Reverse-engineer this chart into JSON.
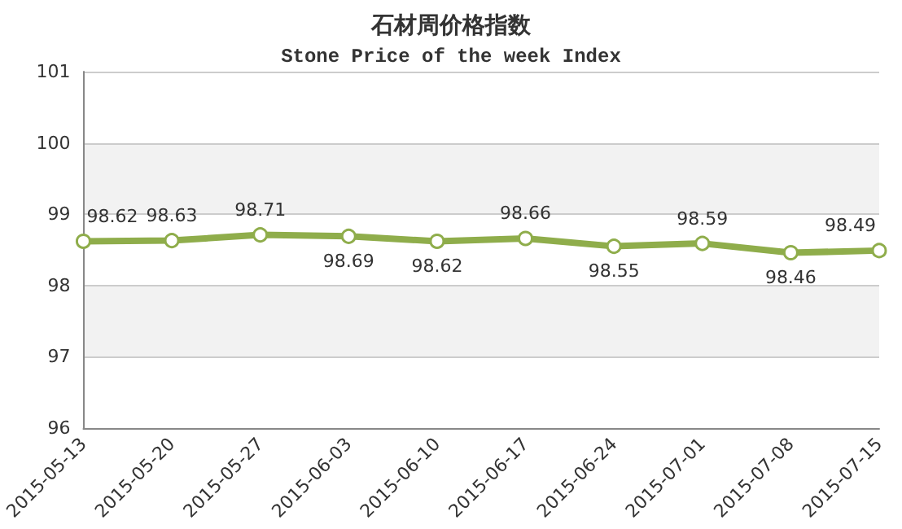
{
  "chart_data": {
    "type": "line",
    "title": "石材周价格指数",
    "subtitle": "Stone Price of the week Index",
    "categories": [
      "2015-05-13",
      "2015-05-20",
      "2015-05-27",
      "2015-06-03",
      "2015-06-10",
      "2015-06-17",
      "2015-06-24",
      "2015-07-01",
      "2015-07-08",
      "2015-07-15"
    ],
    "series": [
      {
        "color": "#8fad4b",
        "values": [
          98.62,
          98.63,
          98.71,
          98.69,
          98.62,
          98.66,
          98.55,
          98.59,
          98.46,
          98.49
        ]
      }
    ],
    "ylim": [
      96,
      101
    ],
    "yticks": [
      96,
      97,
      98,
      99,
      100,
      101
    ],
    "grid": "y",
    "marker": "circle",
    "line_style": "solid",
    "data_labels": true
  }
}
